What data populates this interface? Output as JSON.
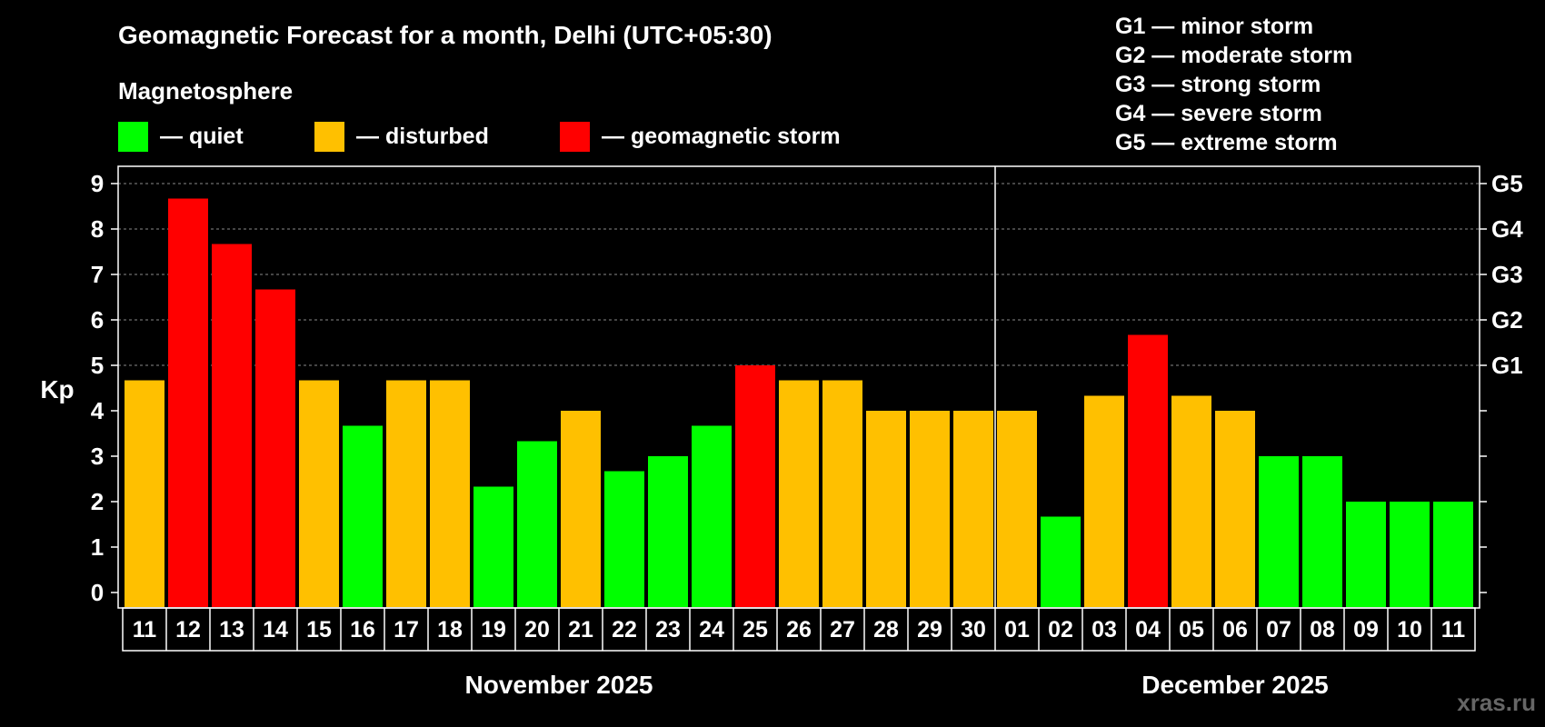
{
  "title": "Geomagnetic Forecast for a month, Delhi (UTC+05:30)",
  "legend": {
    "heading": "Magnetosphere",
    "items": [
      {
        "label": "— quiet",
        "color": "#00ff00"
      },
      {
        "label": "— disturbed",
        "color": "#ffc000"
      },
      {
        "label": "— geomagnetic storm",
        "color": "#ff0000"
      }
    ]
  },
  "storm_scale": [
    "G1 — minor storm",
    "G2 — moderate storm",
    "G3 — strong storm",
    "G4 — severe storm",
    "G5 — extreme storm"
  ],
  "watermark": "xras.ru",
  "chart_data": {
    "type": "bar",
    "ylabel": "Kp",
    "ylim": [
      0,
      9
    ],
    "yticks": [
      "0",
      "1",
      "2",
      "3",
      "4",
      "5",
      "6",
      "7",
      "8",
      "9"
    ],
    "right_axis_labels": [
      {
        "kp": 5,
        "label": "G1"
      },
      {
        "kp": 6,
        "label": "G2"
      },
      {
        "kp": 7,
        "label": "G3"
      },
      {
        "kp": 8,
        "label": "G4"
      },
      {
        "kp": 9,
        "label": "G5"
      }
    ],
    "grid": "dashed horizontal at Kp 5-9",
    "months": [
      {
        "label": "November 2025",
        "days": 20
      },
      {
        "label": "December 2025",
        "days": 11
      }
    ],
    "categories": [
      "11",
      "12",
      "13",
      "14",
      "15",
      "16",
      "17",
      "18",
      "19",
      "20",
      "21",
      "22",
      "23",
      "24",
      "25",
      "26",
      "27",
      "28",
      "29",
      "30",
      "01",
      "02",
      "03",
      "04",
      "05",
      "06",
      "07",
      "08",
      "09",
      "10",
      "11"
    ],
    "values": [
      4.67,
      8.67,
      7.67,
      6.67,
      4.67,
      3.67,
      4.67,
      4.67,
      2.33,
      3.33,
      4.0,
      2.67,
      3.0,
      3.67,
      5.0,
      4.67,
      4.67,
      4.0,
      4.0,
      4.0,
      4.0,
      1.67,
      4.33,
      5.67,
      4.33,
      4.0,
      3.0,
      3.0,
      2.0,
      2.0,
      2.0
    ],
    "status": [
      "disturbed",
      "storm",
      "storm",
      "storm",
      "disturbed",
      "quiet",
      "disturbed",
      "disturbed",
      "quiet",
      "quiet",
      "disturbed",
      "quiet",
      "quiet",
      "quiet",
      "storm",
      "disturbed",
      "disturbed",
      "disturbed",
      "disturbed",
      "disturbed",
      "disturbed",
      "quiet",
      "disturbed",
      "storm",
      "disturbed",
      "disturbed",
      "quiet",
      "quiet",
      "quiet",
      "quiet",
      "quiet"
    ],
    "colors": {
      "quiet": "#00ff00",
      "disturbed": "#ffc000",
      "storm": "#ff0000"
    }
  }
}
